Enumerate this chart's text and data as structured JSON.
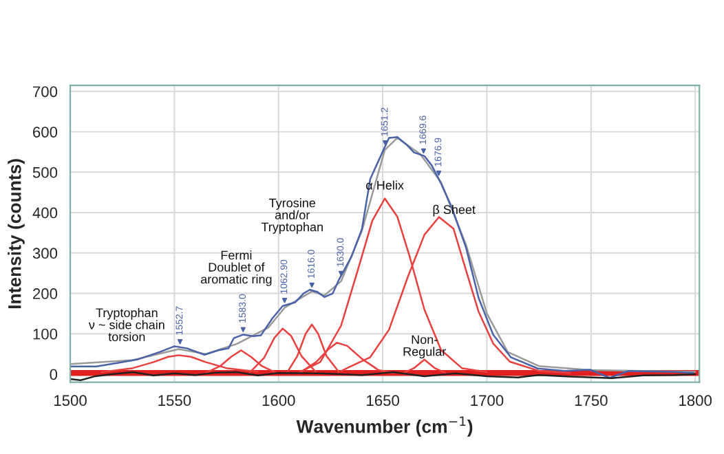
{
  "chart_data": {
    "type": "line",
    "xlabel": "Wavenumber (cm$^{−1}$)",
    "ylabel": "Intensity (counts)",
    "xlim": [
      1500,
      1802
    ],
    "xticks": [
      1500,
      1550,
      1600,
      1650,
      1700,
      1750,
      1800
    ],
    "ylim": [
      -20,
      715
    ],
    "yticks": [
      0,
      100,
      200,
      300,
      400,
      500,
      600,
      700
    ],
    "grid": true,
    "series": [
      {
        "color": "#9a9a9a",
        "x": [
          1500,
          1530,
          1552,
          1565,
          1580,
          1595,
          1603,
          1616,
          1622,
          1630,
          1640,
          1651,
          1657,
          1668,
          1678,
          1690,
          1700,
          1710,
          1725,
          1750,
          1800
        ],
        "values": [
          25,
          35,
          62,
          50,
          75,
          115,
          165,
          205,
          195,
          230,
          355,
          555,
          585,
          545,
          475,
          320,
          150,
          55,
          20,
          10,
          6
        ]
      },
      {
        "color": "#4a63a8",
        "x": [
          1500,
          1512.5,
          1523,
          1532,
          1543,
          1550,
          1556,
          1564.5,
          1571,
          1576,
          1578.5,
          1583,
          1588,
          1591.5,
          1597,
          1602,
          1608,
          1612,
          1615,
          1618.6,
          1622,
          1626,
          1629,
          1635,
          1640,
          1644,
          1650,
          1653,
          1657,
          1661.5,
          1665,
          1670,
          1673.5,
          1678,
          1683,
          1690,
          1696,
          1703,
          1711.5,
          1724.5,
          1737.6,
          1749.6,
          1759,
          1768,
          1790,
          1799
        ],
        "values": [
          19,
          19,
          28,
          36,
          55,
          69,
          64,
          48,
          59,
          64,
          89,
          98,
          94,
          96,
          138,
          169,
          178,
          200,
          209,
          204,
          191,
          200,
          234,
          291,
          359,
          483,
          551,
          585,
          587,
          568,
          549,
          540,
          517,
          472,
          415,
          313,
          189,
          98,
          42,
          14,
          8,
          11,
          -9,
          8,
          6,
          3
        ]
      },
      {
        "color": "#e8403f",
        "x": [
          1515,
          1530,
          1540,
          1547,
          1552,
          1558,
          1565,
          1575,
          1590
        ],
        "values": [
          5,
          15,
          30,
          43,
          47,
          43,
          30,
          15,
          6
        ]
      },
      {
        "color": "#e8403f",
        "x": [
          1565,
          1572,
          1577,
          1582,
          1587,
          1592,
          1599
        ],
        "values": [
          3,
          20,
          42,
          59,
          42,
          20,
          3
        ]
      },
      {
        "color": "#e8403f",
        "x": [
          1586,
          1593,
          1598,
          1602,
          1606,
          1611,
          1618
        ],
        "values": [
          3,
          40,
          90,
          113,
          95,
          45,
          5
        ]
      },
      {
        "color": "#e8403f",
        "x": [
          1604,
          1609,
          1613,
          1616,
          1619,
          1623,
          1629
        ],
        "values": [
          3,
          45,
          100,
          123,
          100,
          45,
          5
        ]
      },
      {
        "color": "#e8403f",
        "x": [
          1610,
          1618,
          1624,
          1628,
          1633,
          1640,
          1648,
          1655
        ],
        "values": [
          3,
          30,
          62,
          78,
          70,
          38,
          10,
          3
        ]
      },
      {
        "color": "#e8403f",
        "x": [
          1610,
          1620,
          1630,
          1638,
          1645,
          1651,
          1657,
          1663,
          1670,
          1678,
          1688,
          1700
        ],
        "values": [
          5,
          30,
          120,
          257,
          380,
          435,
          390,
          290,
          160,
          60,
          15,
          5
        ]
      },
      {
        "color": "#e8403f",
        "x": [
          1660,
          1665,
          1670,
          1675,
          1680
        ],
        "values": [
          3,
          15,
          36,
          15,
          3
        ]
      },
      {
        "color": "#e8403f",
        "x": [
          1630,
          1644,
          1653,
          1662,
          1670,
          1677,
          1684,
          1690,
          1696,
          1703,
          1711,
          1725,
          1740
        ],
        "values": [
          8,
          42,
          110,
          240,
          345,
          389,
          360,
          257,
          155,
          76,
          31,
          8,
          3
        ]
      },
      {
        "color": "#222222",
        "x": [
          1500,
          1505,
          1512,
          1520,
          1530,
          1540,
          1550,
          1560,
          1570,
          1580,
          1590,
          1600,
          1620,
          1640,
          1655,
          1670,
          1685,
          1700,
          1715,
          1725,
          1740,
          1760,
          1775,
          1790,
          1800
        ],
        "values": [
          -12,
          -15,
          -5,
          0,
          5,
          -3,
          2,
          -2,
          4,
          5,
          -3,
          3,
          2,
          -2,
          5,
          -5,
          2,
          -5,
          -8,
          -2,
          -6,
          -10,
          -3,
          -2,
          0
        ]
      }
    ],
    "ref_lines": [
      {
        "axis": "y",
        "value": 3,
        "color": "#e02020"
      }
    ],
    "annotations": [
      {
        "text": "1552.7",
        "x": 1552.7,
        "y": 68
      },
      {
        "text": "1583.0",
        "x": 1583,
        "y": 98
      },
      {
        "text": "1062.90",
        "x": 1602.9,
        "y": 170
      },
      {
        "text": "1616.0",
        "x": 1616,
        "y": 208
      },
      {
        "text": "1630.0",
        "x": 1630,
        "y": 237
      },
      {
        "text": "1651.2",
        "x": 1651.2,
        "y": 560
      },
      {
        "text": "1669.6",
        "x": 1669.6,
        "y": 540
      },
      {
        "text": "1676.9",
        "x": 1676.9,
        "y": 485
      },
      "Tryptophan\nν ~ side chain\ntorsion",
      "Fermi\nDoublet of\naromatic ring",
      "Tyrosine\nand/or\nTryptophan",
      "α Helix",
      "β Sheet",
      "Non-\nRegular"
    ]
  }
}
